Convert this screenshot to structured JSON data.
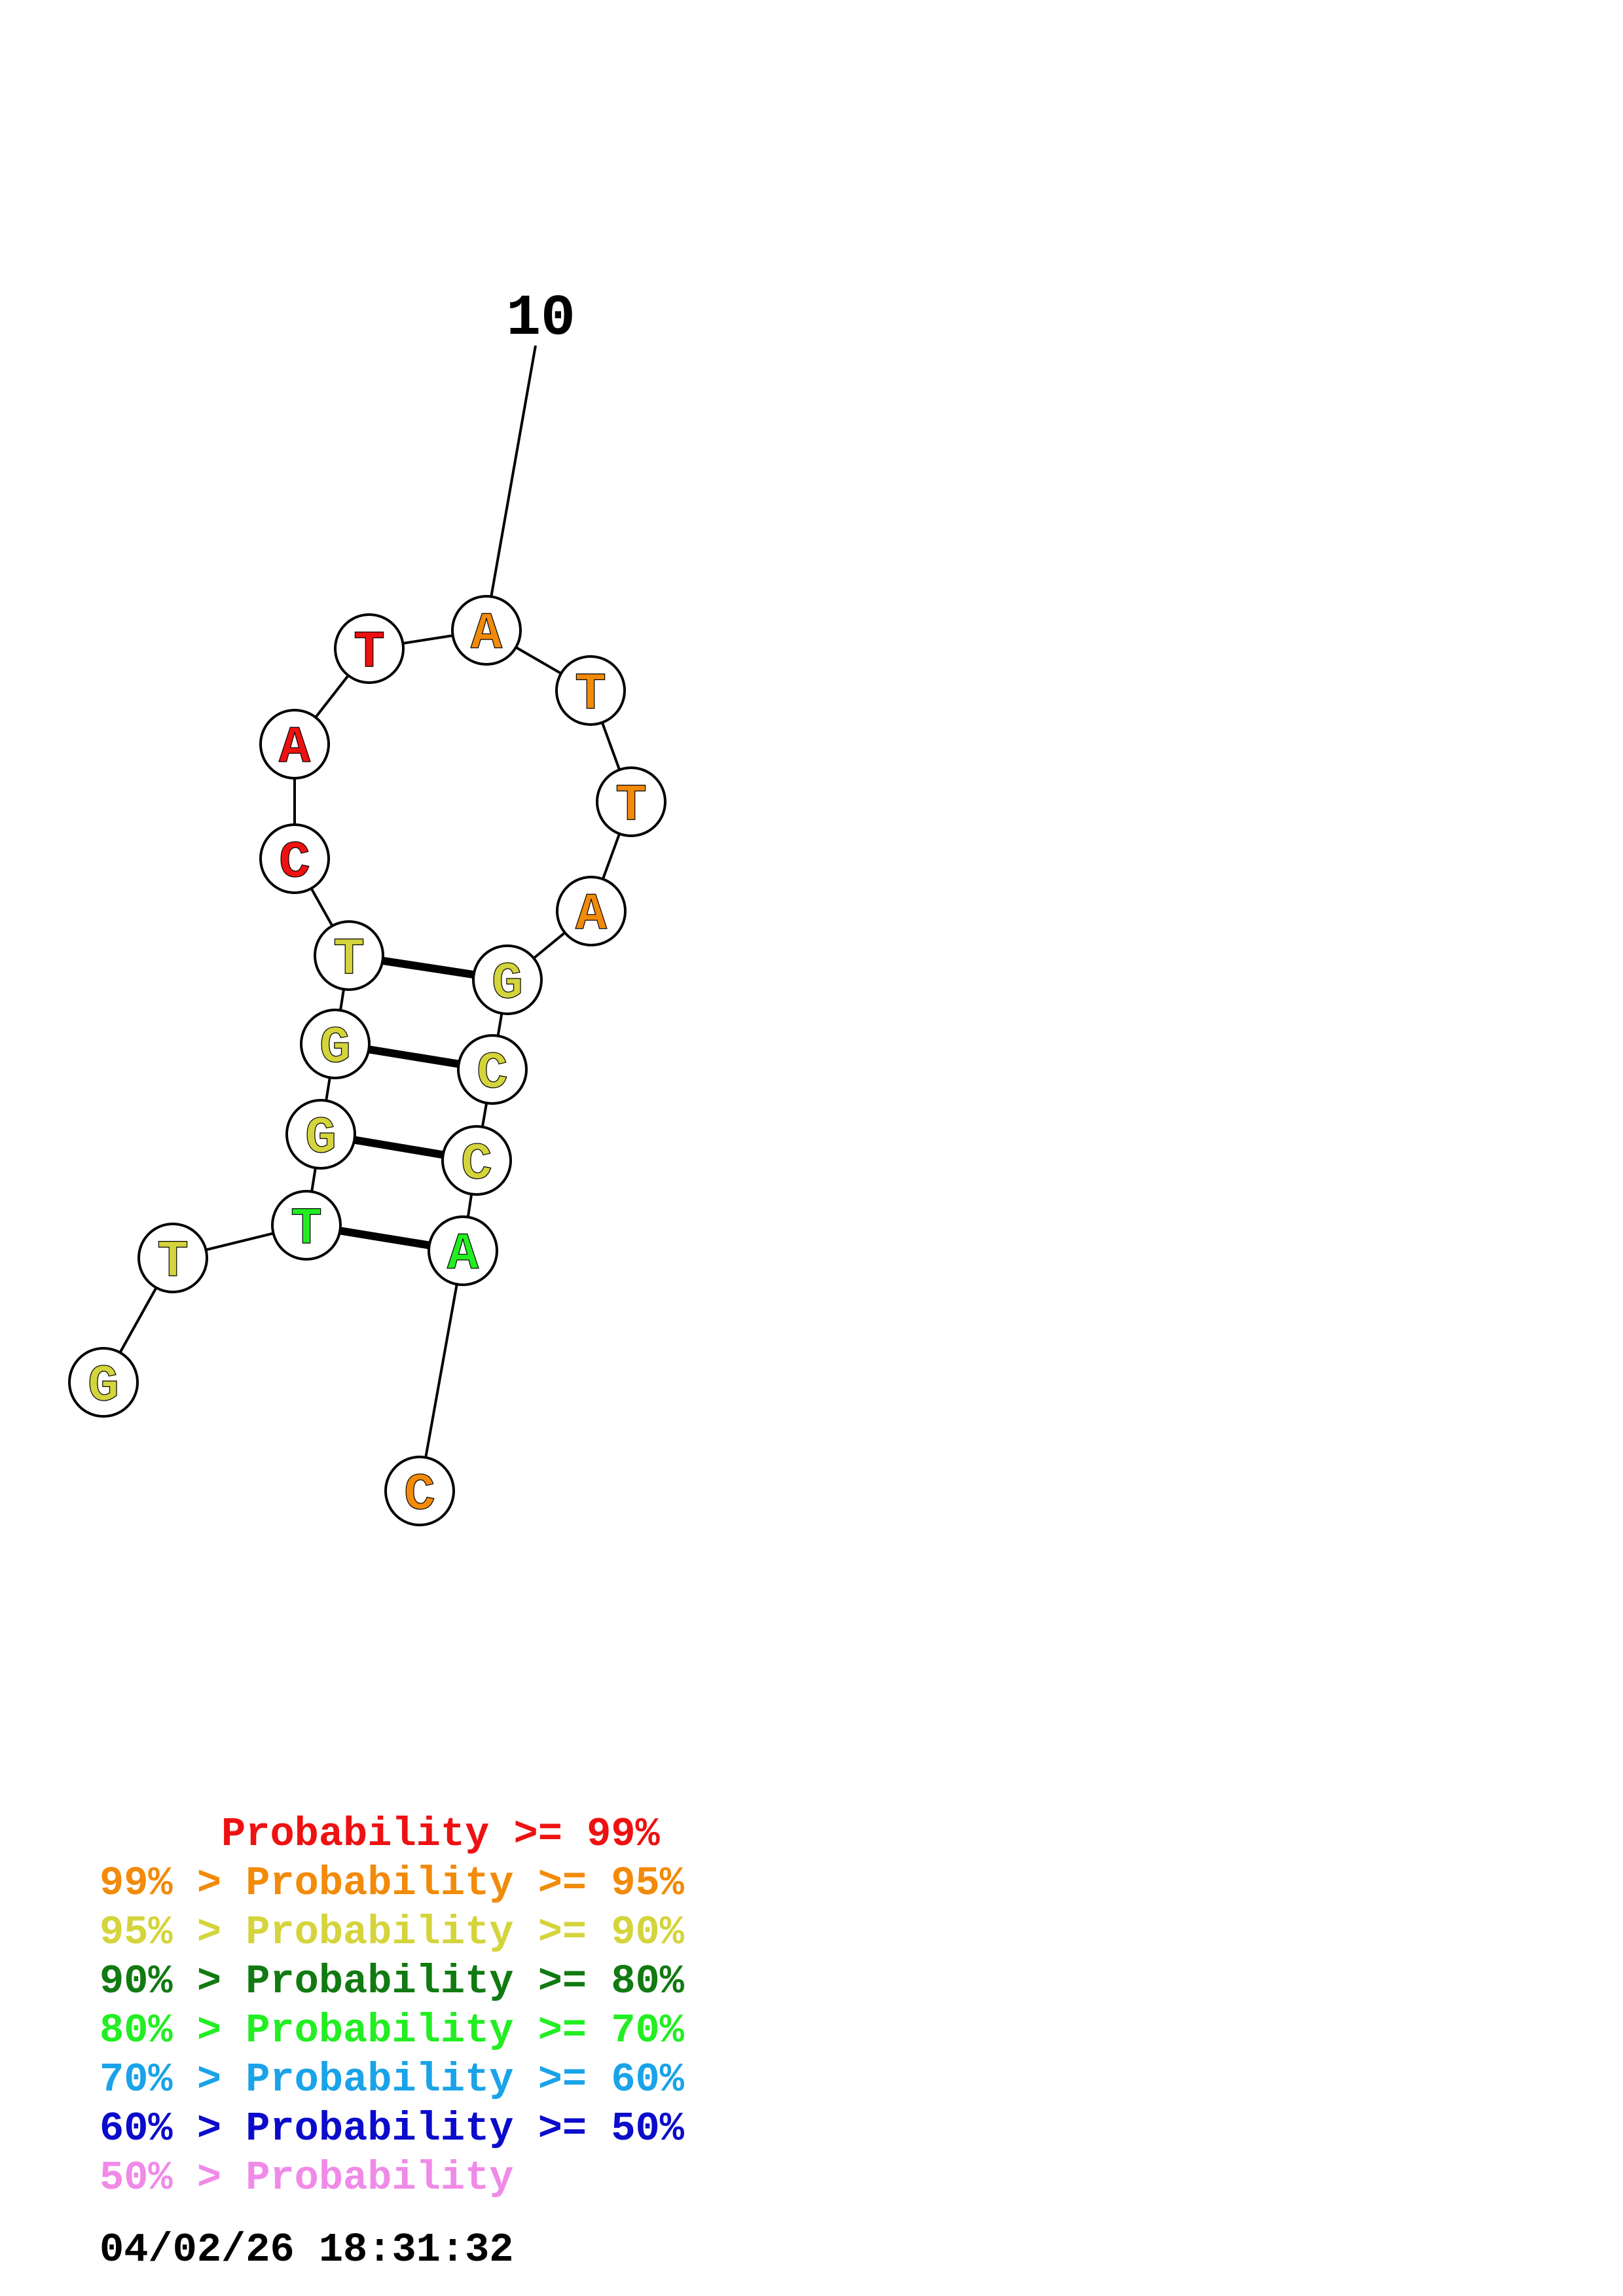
{
  "structure": {
    "position_label": "10",
    "nucleotides": [
      {
        "base": "G",
        "color": "#d4d43c"
      },
      {
        "base": "T",
        "color": "#d4d43c"
      },
      {
        "base": "T",
        "color": "#22ee22"
      },
      {
        "base": "G",
        "color": "#d4d43c"
      },
      {
        "base": "G",
        "color": "#d4d43c"
      },
      {
        "base": "T",
        "color": "#d4d43c"
      },
      {
        "base": "C",
        "color": "#ee1111"
      },
      {
        "base": "A",
        "color": "#ee1111"
      },
      {
        "base": "T",
        "color": "#ee1111"
      },
      {
        "base": "A",
        "color": "#f28a0a"
      },
      {
        "base": "T",
        "color": "#f28a0a"
      },
      {
        "base": "T",
        "color": "#f28a0a"
      },
      {
        "base": "A",
        "color": "#f28a0a"
      },
      {
        "base": "G",
        "color": "#d4d43c"
      },
      {
        "base": "C",
        "color": "#d4d43c"
      },
      {
        "base": "C",
        "color": "#d4d43c"
      },
      {
        "base": "A",
        "color": "#22ee22"
      },
      {
        "base": "C",
        "color": "#f28a0a"
      }
    ],
    "pairs": [
      [
        3,
        17
      ],
      [
        4,
        16
      ],
      [
        5,
        15
      ],
      [
        6,
        14
      ]
    ]
  },
  "legend": [
    {
      "text": "     Probability >= 99%",
      "color": "#ee1111"
    },
    {
      "text": "99% > Probability >= 95%",
      "color": "#f28a0a"
    },
    {
      "text": "95% > Probability >= 90%",
      "color": "#d4d43c"
    },
    {
      "text": "90% > Probability >= 80%",
      "color": "#117a11"
    },
    {
      "text": "80% > Probability >= 70%",
      "color": "#22ee22"
    },
    {
      "text": "70% > Probability >= 60%",
      "color": "#1aa3e8"
    },
    {
      "text": "60% > Probability >= 50%",
      "color": "#0b0bcc"
    },
    {
      "text": "50% > Probability",
      "color": "#f08ae8"
    }
  ],
  "timestamp": "04/02/26 18:31:32"
}
